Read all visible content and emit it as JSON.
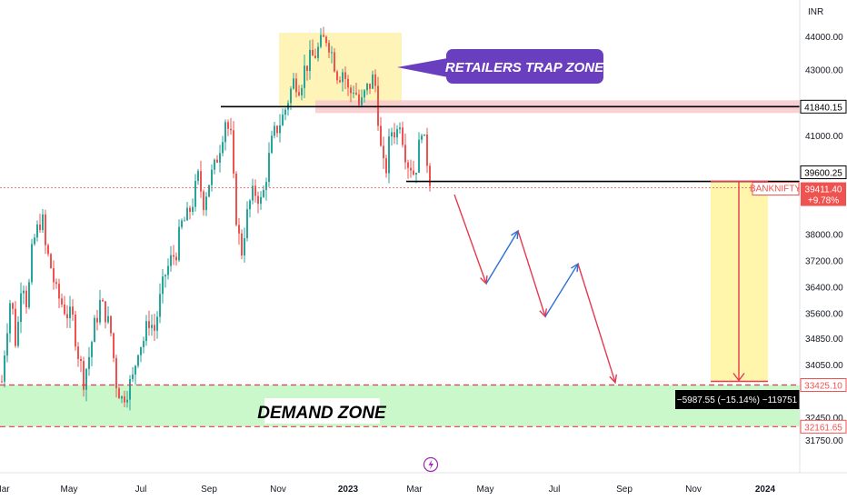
{
  "chart_data": {
    "type": "candlestick",
    "symbol": "BANKNIFTY",
    "currency": "INR",
    "ylim": [
      31500,
      44600
    ],
    "y_ticks": [
      "44000.00",
      "43000.00",
      "41000.00",
      "38000.00",
      "37200.00",
      "36400.00",
      "35600.00",
      "34850.00",
      "34050.00",
      "32450.00",
      "31750.00"
    ],
    "x_ticks": [
      {
        "label": "Mar",
        "bold": false
      },
      {
        "label": "May",
        "bold": false
      },
      {
        "label": "Jul",
        "bold": false
      },
      {
        "label": "Sep",
        "bold": false
      },
      {
        "label": "Nov",
        "bold": false
      },
      {
        "label": "2023",
        "bold": true
      },
      {
        "label": "Mar",
        "bold": false
      },
      {
        "label": "May",
        "bold": false
      },
      {
        "label": "Jul",
        "bold": false
      },
      {
        "label": "Sep",
        "bold": false
      },
      {
        "label": "Nov",
        "bold": false
      },
      {
        "label": "2024",
        "bold": true
      }
    ],
    "price_path": [
      [
        0,
        32900
      ],
      [
        6,
        34800
      ],
      [
        12,
        36200
      ],
      [
        18,
        34500
      ],
      [
        24,
        36900
      ],
      [
        30,
        35800
      ],
      [
        36,
        37700
      ],
      [
        42,
        38200
      ],
      [
        46,
        38600
      ],
      [
        50,
        37600
      ],
      [
        56,
        37000
      ],
      [
        62,
        36200
      ],
      [
        68,
        35900
      ],
      [
        74,
        35600
      ],
      [
        80,
        35400
      ],
      [
        86,
        34400
      ],
      [
        92,
        33600
      ],
      [
        98,
        34300
      ],
      [
        104,
        35200
      ],
      [
        110,
        35900
      ],
      [
        116,
        35600
      ],
      [
        122,
        35000
      ],
      [
        128,
        33500
      ],
      [
        134,
        33000
      ],
      [
        140,
        33300
      ],
      [
        146,
        33600
      ],
      [
        152,
        34600
      ],
      [
        158,
        34800
      ],
      [
        164,
        35400
      ],
      [
        170,
        35100
      ],
      [
        176,
        36000
      ],
      [
        182,
        36800
      ],
      [
        188,
        37200
      ],
      [
        194,
        37500
      ],
      [
        200,
        38300
      ],
      [
        206,
        38500
      ],
      [
        212,
        39000
      ],
      [
        218,
        39700
      ],
      [
        224,
        39000
      ],
      [
        230,
        39600
      ],
      [
        236,
        40000
      ],
      [
        242,
        40700
      ],
      [
        248,
        41500
      ],
      [
        254,
        40900
      ],
      [
        258,
        39100
      ],
      [
        262,
        38000
      ],
      [
        266,
        37500
      ],
      [
        270,
        38300
      ],
      [
        276,
        39100
      ],
      [
        282,
        39300
      ],
      [
        288,
        38900
      ],
      [
        294,
        40000
      ],
      [
        300,
        40900
      ],
      [
        306,
        41300
      ],
      [
        312,
        41600
      ],
      [
        318,
        42200
      ],
      [
        324,
        42700
      ],
      [
        330,
        42500
      ],
      [
        336,
        43100
      ],
      [
        342,
        43300
      ],
      [
        348,
        43500
      ],
      [
        354,
        43800
      ],
      [
        360,
        44000
      ],
      [
        366,
        43400
      ],
      [
        372,
        42800
      ],
      [
        378,
        43000
      ],
      [
        384,
        42200
      ],
      [
        390,
        42500
      ],
      [
        396,
        41800
      ],
      [
        402,
        42300
      ],
      [
        408,
        42600
      ],
      [
        412,
        42800
      ],
      [
        416,
        41600
      ],
      [
        420,
        40200
      ],
      [
        424,
        39800
      ],
      [
        428,
        40700
      ],
      [
        432,
        41300
      ],
      [
        436,
        41000
      ],
      [
        440,
        41500
      ],
      [
        444,
        40800
      ],
      [
        448,
        40200
      ],
      [
        452,
        40100
      ],
      [
        456,
        39800
      ],
      [
        460,
        40400
      ],
      [
        464,
        41300
      ],
      [
        468,
        40500
      ],
      [
        472,
        40000
      ],
      [
        474,
        39411.4
      ]
    ],
    "levels": [
      {
        "name": "resistance",
        "value": 41840.15,
        "label": "41840.15"
      },
      {
        "name": "support",
        "value": 39600.25,
        "label": "39600.25"
      },
      {
        "name": "current",
        "value": 39411.4,
        "label": "39411.40",
        "change": "+9.78%"
      },
      {
        "name": "target",
        "value": 33425.1,
        "label": "33425.10"
      },
      {
        "name": "demand-bottom",
        "value": 32161.65,
        "label": "32161.65"
      }
    ],
    "measurement": "−5987.55 (−15.14%) −119751",
    "trap_zone_label": "RETAILERS TRAP ZONE",
    "demand_zone_label": "DEMAND ZONE",
    "projection_path": [
      {
        "x": 500,
        "value": 39200
      },
      {
        "x": 535,
        "value": 36500
      },
      {
        "x": 570,
        "value": 38100
      },
      {
        "x": 600,
        "value": 35500
      },
      {
        "x": 636,
        "value": 37100
      },
      {
        "x": 677,
        "value": 33500
      }
    ]
  },
  "colors": {
    "up": "#26a69a",
    "down": "#ef5350",
    "demand_zone": "#b9f6ba",
    "trap_zone": "#fff3b0",
    "resistance_band": "#f8c8cc",
    "callout": "#6a3fbf",
    "target_box": "#fff59d",
    "projection_down": "#e53950",
    "projection_up": "#2f6fd8"
  }
}
